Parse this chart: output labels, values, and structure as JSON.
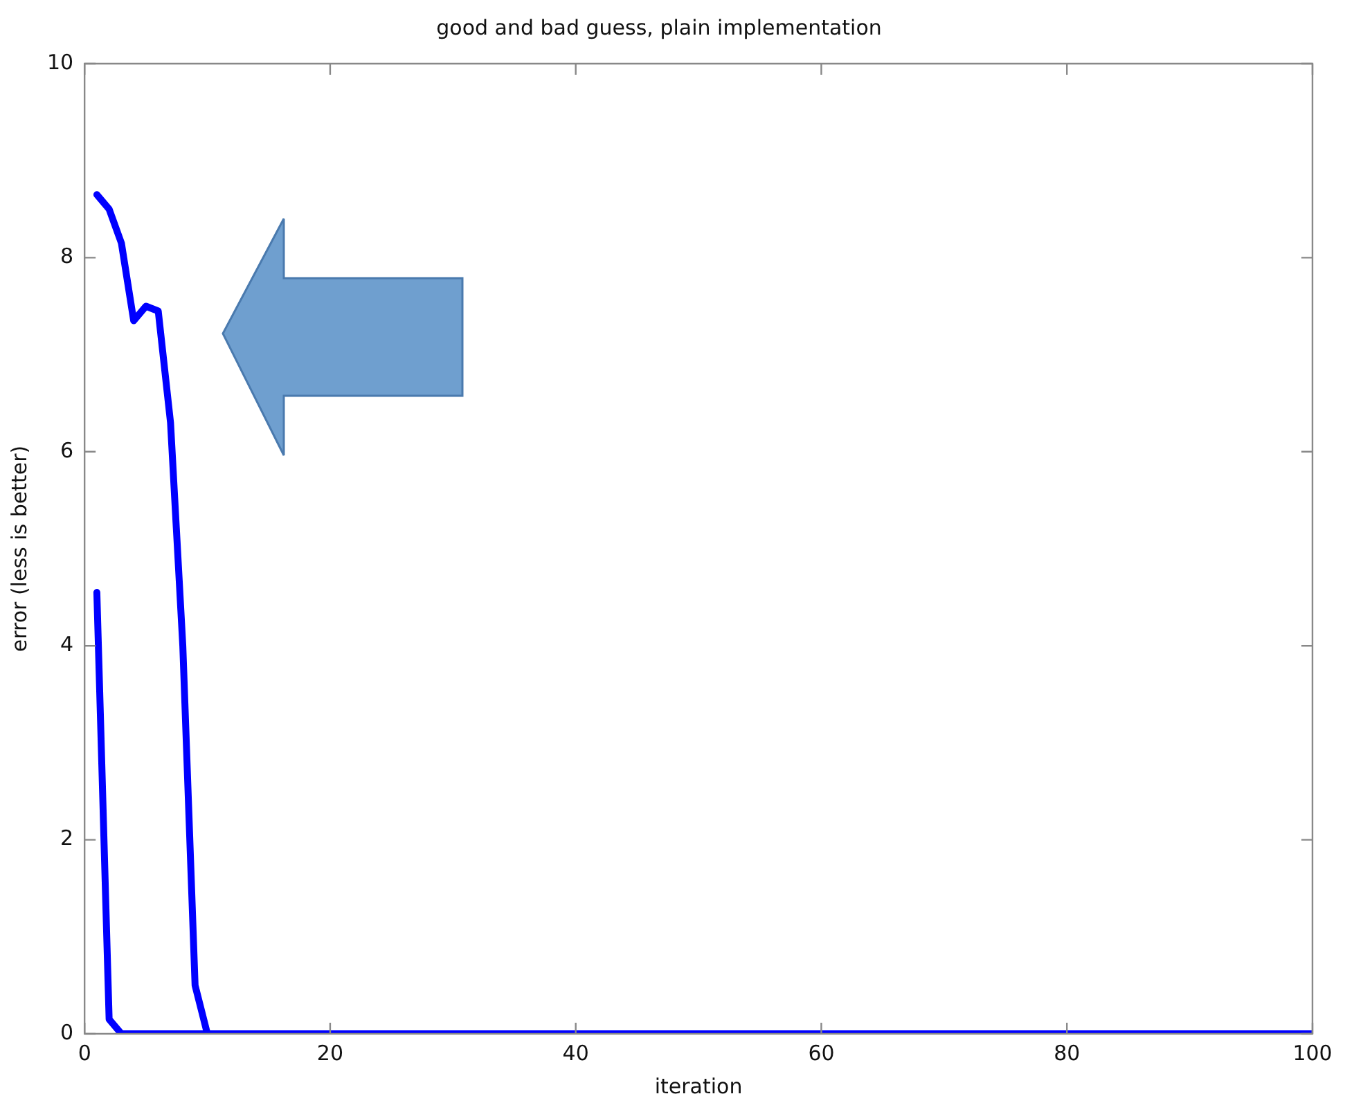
{
  "chart_data": {
    "type": "line",
    "title": "good and bad guess, plain implementation",
    "xlabel": "iteration",
    "ylabel": "error (less is better)",
    "xlim": [
      0,
      100
    ],
    "ylim": [
      0,
      10
    ],
    "xticks": [
      0,
      20,
      40,
      60,
      80,
      100
    ],
    "yticks": [
      0,
      2,
      4,
      6,
      8,
      10
    ],
    "series": [
      {
        "color": "#0000ff",
        "x": [
          1,
          2,
          3,
          4,
          5,
          6,
          7,
          8,
          9,
          10,
          100
        ],
        "values": [
          8.65,
          8.5,
          8.15,
          7.35,
          7.5,
          7.45,
          6.3,
          4.0,
          0.5,
          0,
          0
        ]
      },
      {
        "color": "#0000ff",
        "x": [
          1,
          2,
          3,
          100
        ],
        "values": [
          4.55,
          0.15,
          0,
          0
        ]
      }
    ]
  }
}
